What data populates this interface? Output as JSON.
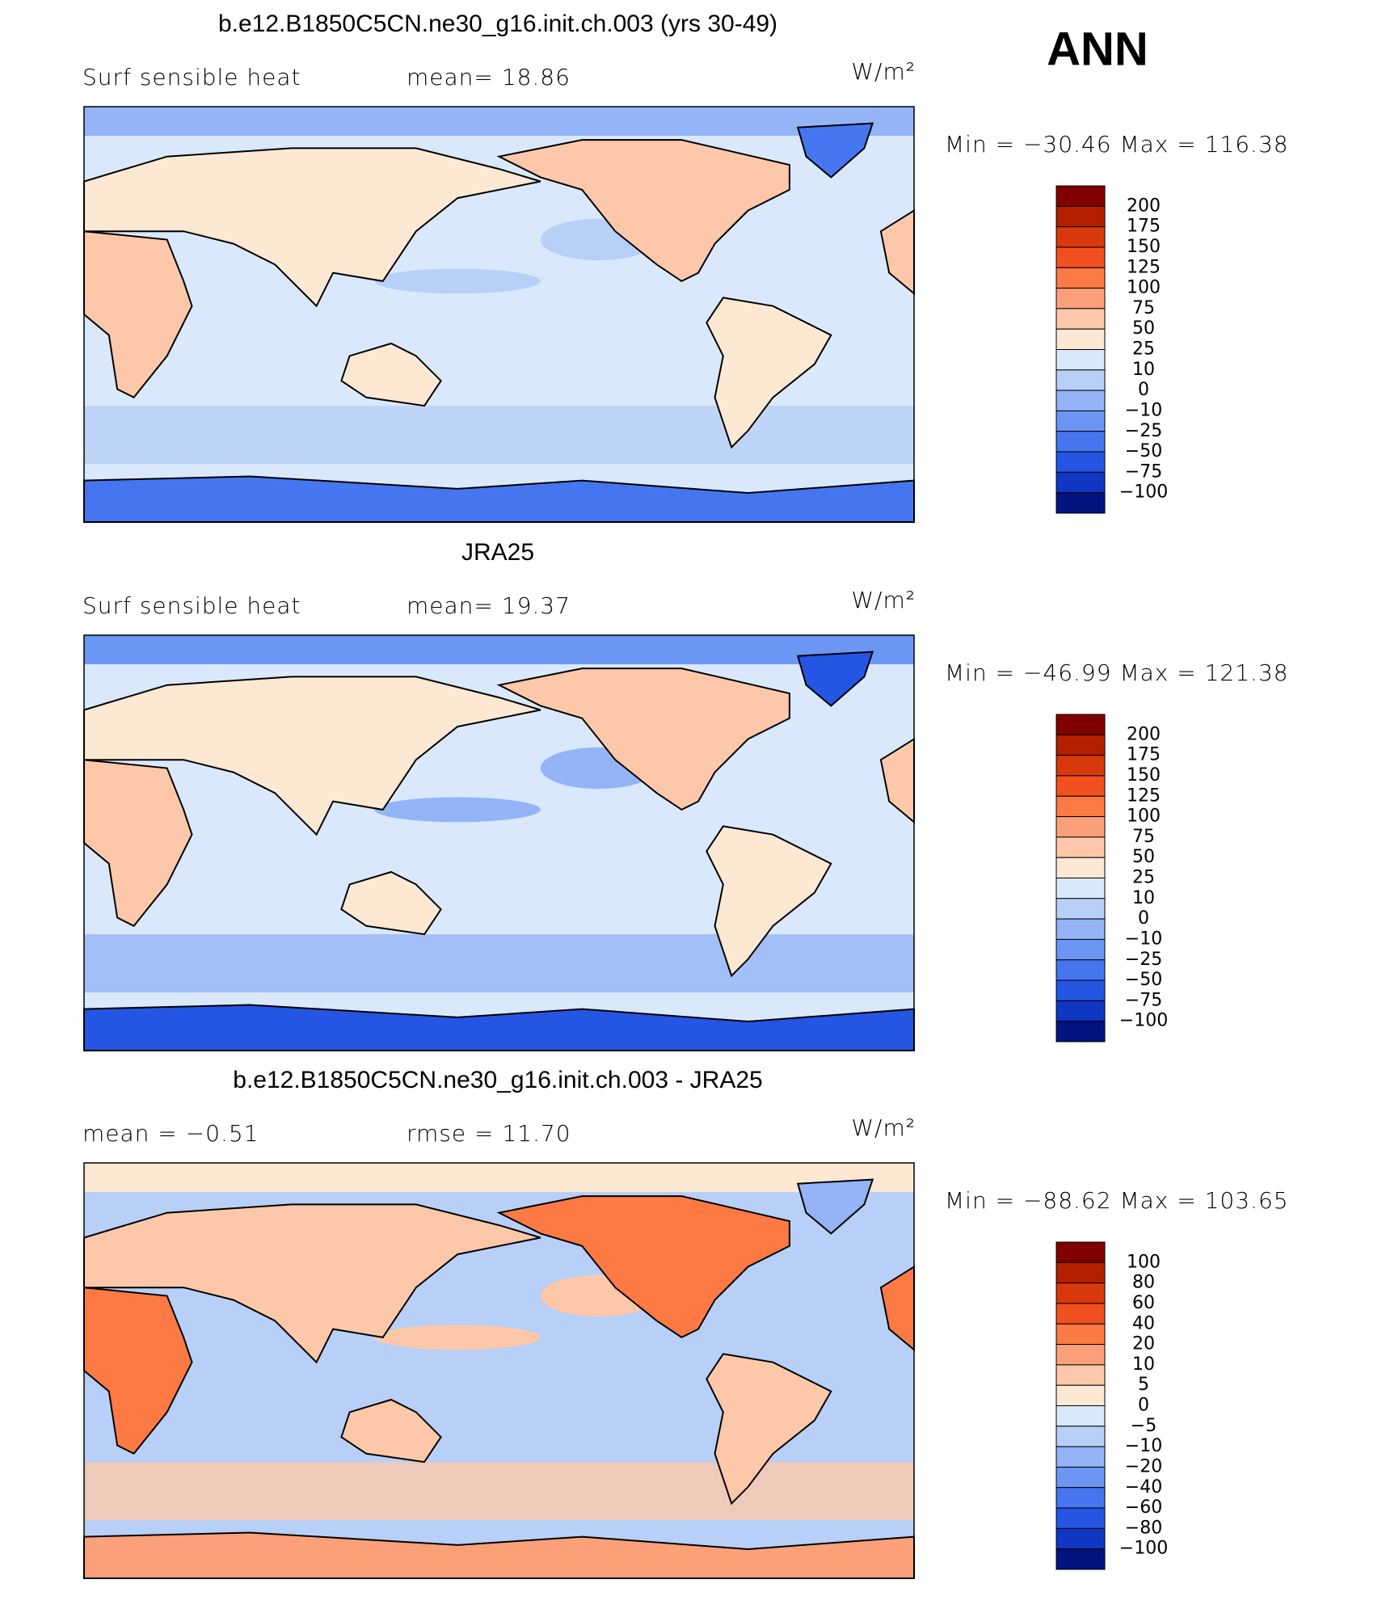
{
  "season": "ANN",
  "panels": [
    {
      "title": "b.e12.B1850C5CN.ne30_g16.init.ch.003 (yrs 30-49)",
      "left_label": "Surf  sensible  heat",
      "center_label": "mean=   18.86",
      "units": "W/m²",
      "min_max": "Min  =  −30.46  Max  =  116.38",
      "colorbar_labels": [
        "200",
        "175",
        "150",
        "125",
        "100",
        "75",
        "50",
        "25",
        "10",
        "0",
        "−10",
        "−25",
        "−50",
        "−75",
        "−100"
      ]
    },
    {
      "title": "JRA25",
      "left_label": "Surf  sensible  heat",
      "center_label": "mean=   19.37",
      "units": "W/m²",
      "min_max": "Min  =  −46.99  Max  =  121.38",
      "colorbar_labels": [
        "200",
        "175",
        "150",
        "125",
        "100",
        "75",
        "50",
        "25",
        "10",
        "0",
        "−10",
        "−25",
        "−50",
        "−75",
        "−100"
      ]
    },
    {
      "title": "b.e12.B1850C5CN.ne30_g16.init.ch.003 - JRA25",
      "left_label": "mean =   −0.51",
      "center_label": "rmse =   11.70",
      "units": "W/m²",
      "min_max": "Min  =  −88.62  Max  =  103.65",
      "colorbar_labels": [
        "100",
        "80",
        "60",
        "40",
        "20",
        "10",
        "5",
        "0",
        "−5",
        "−10",
        "−20",
        "−40",
        "−60",
        "−80",
        "−100"
      ]
    }
  ],
  "colorbar_colors": [
    "#800000",
    "#b41f00",
    "#d8380a",
    "#f2501e",
    "#fd7a45",
    "#fca07a",
    "#fdc8aa",
    "#fde8d4",
    "#d9e9fb",
    "#b8d0f7",
    "#94b4f7",
    "#6c96f4",
    "#4576ef",
    "#2555e3",
    "#1036c4",
    "#00137f"
  ]
}
